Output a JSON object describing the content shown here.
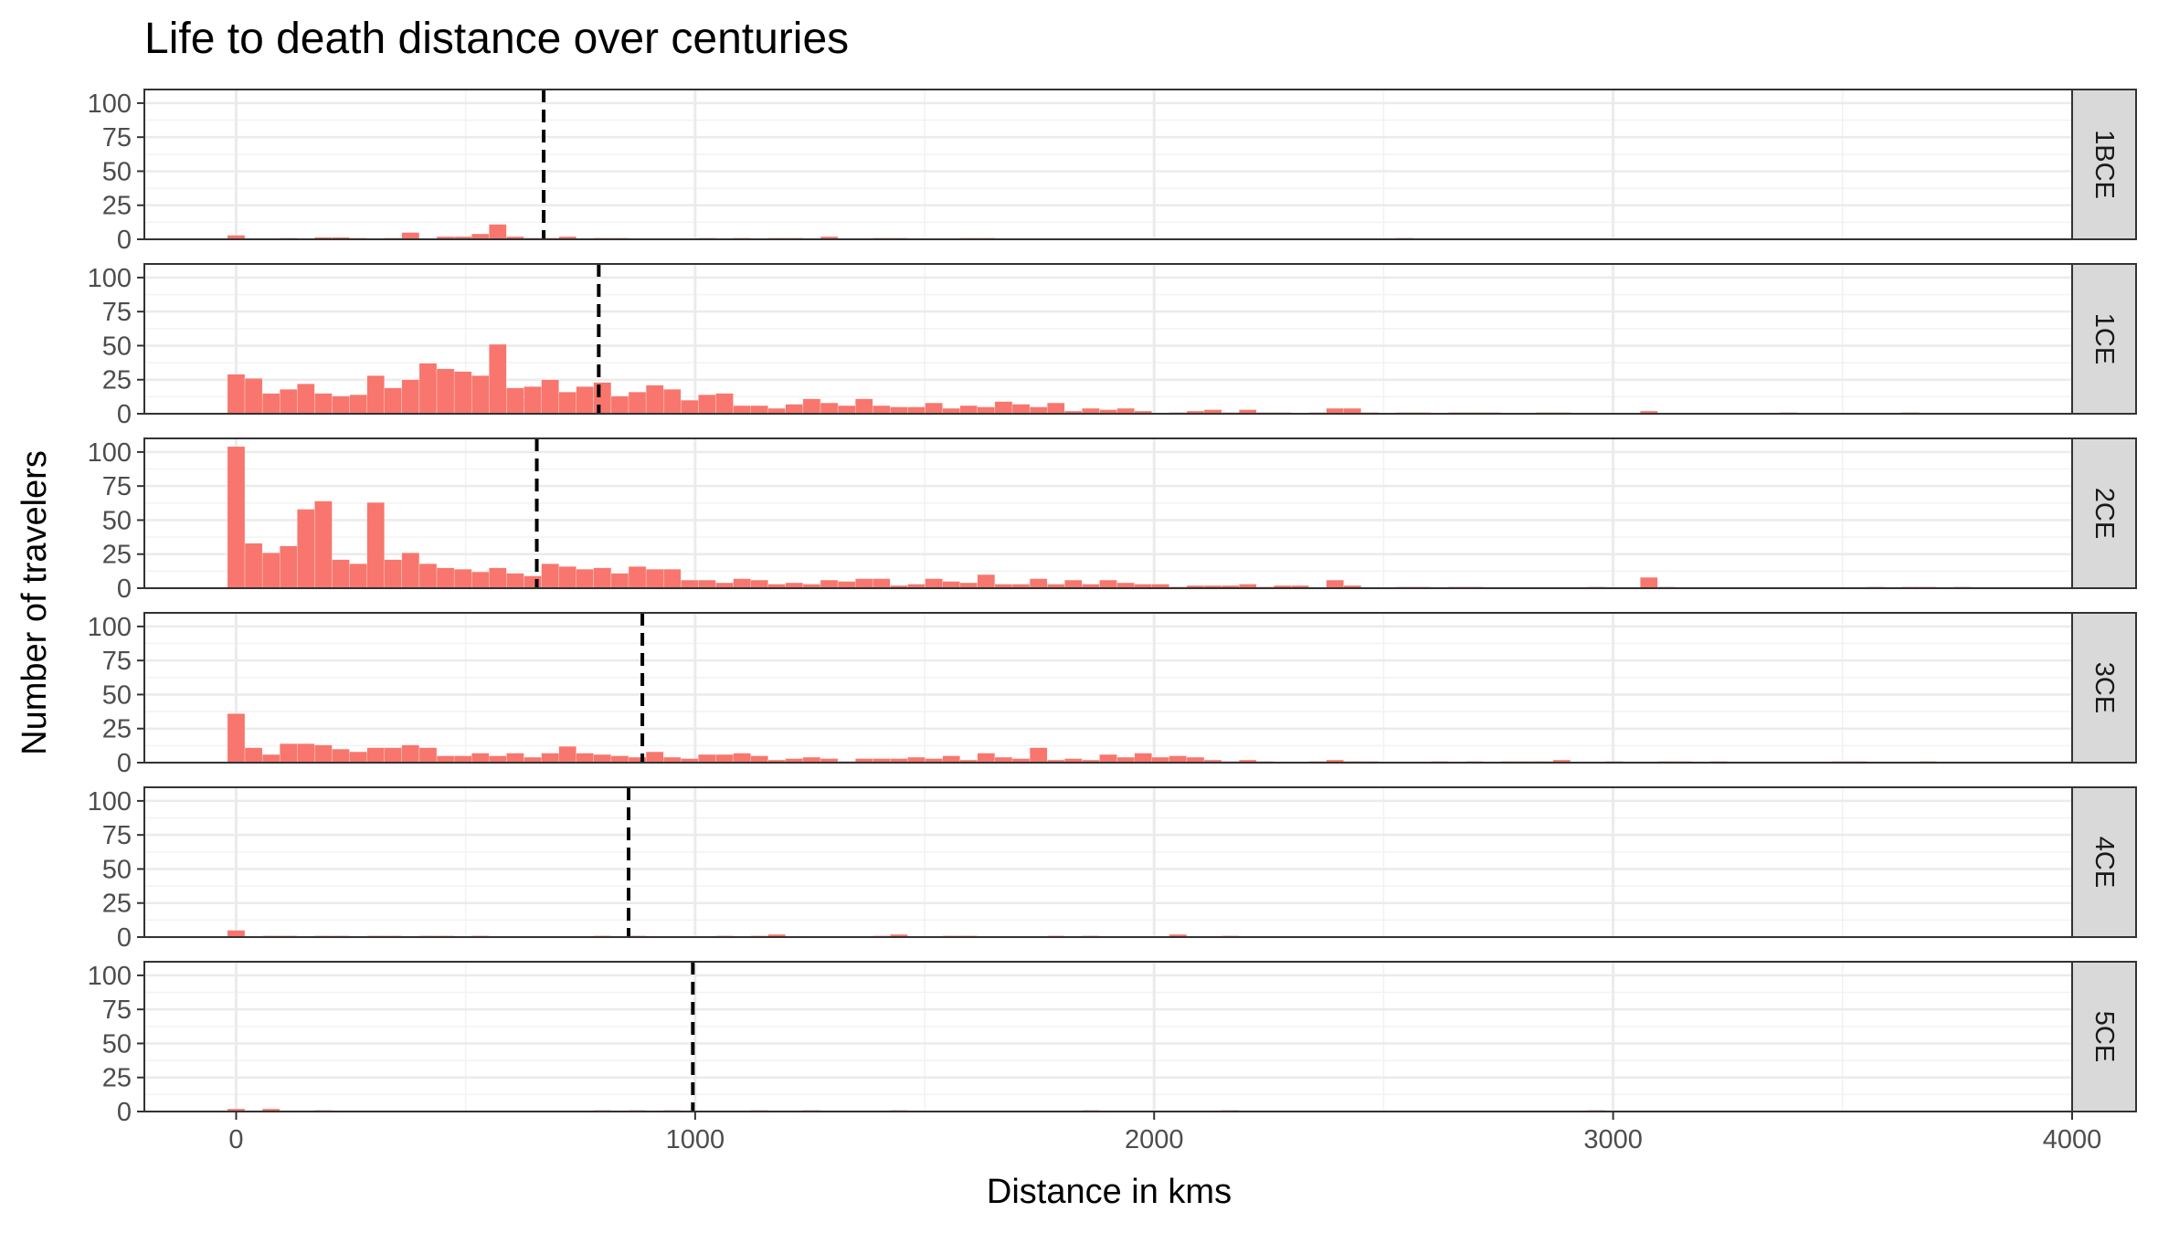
{
  "chart_data": {
    "type": "bar",
    "subtype": "faceted-histogram",
    "title": "Life to death distance over centuries",
    "xlabel": "Distance in kms",
    "ylabel": "Number of travelers",
    "xlim": [
      -200,
      4000
    ],
    "ylim": [
      0,
      110
    ],
    "x_ticks": [
      0,
      1000,
      2000,
      3000,
      4000
    ],
    "y_ticks": [
      0,
      25,
      50,
      75,
      100
    ],
    "bin_width": 38,
    "grid": true,
    "bar_color": "#F8766D",
    "mean_line": {
      "color": "#000000",
      "style": "dashed"
    },
    "facet_strip_position": "right",
    "facets": [
      {
        "label": "1BCE",
        "mean": 670,
        "bins": [
          [
            0,
            3
          ],
          [
            38,
            0.5
          ],
          [
            114,
            1
          ],
          [
            190,
            1.5
          ],
          [
            228,
            1.5
          ],
          [
            266,
            1
          ],
          [
            342,
            1
          ],
          [
            380,
            5
          ],
          [
            456,
            2
          ],
          [
            494,
            2
          ],
          [
            532,
            4
          ],
          [
            570,
            11
          ],
          [
            608,
            2
          ],
          [
            646,
            1
          ],
          [
            684,
            1
          ],
          [
            722,
            2
          ],
          [
            798,
            1
          ],
          [
            836,
            1
          ],
          [
            1026,
            1
          ],
          [
            1102,
            1
          ],
          [
            1178,
            1
          ],
          [
            1216,
            1
          ],
          [
            1292,
            2
          ],
          [
            1406,
            1
          ],
          [
            1444,
            1
          ],
          [
            1596,
            1
          ],
          [
            1634,
            1
          ],
          [
            2546,
            1
          ]
        ]
      },
      {
        "label": "1CE",
        "mean": 790,
        "bins": [
          [
            0,
            29
          ],
          [
            38,
            26
          ],
          [
            76,
            15
          ],
          [
            114,
            18
          ],
          [
            152,
            22
          ],
          [
            190,
            15
          ],
          [
            228,
            13
          ],
          [
            266,
            14
          ],
          [
            304,
            28
          ],
          [
            342,
            19
          ],
          [
            380,
            25
          ],
          [
            418,
            37
          ],
          [
            456,
            33
          ],
          [
            494,
            31
          ],
          [
            532,
            28
          ],
          [
            570,
            51
          ],
          [
            608,
            19
          ],
          [
            646,
            20
          ],
          [
            684,
            25
          ],
          [
            722,
            16
          ],
          [
            760,
            20
          ],
          [
            798,
            23
          ],
          [
            836,
            13
          ],
          [
            874,
            16
          ],
          [
            912,
            21
          ],
          [
            950,
            18
          ],
          [
            988,
            10
          ],
          [
            1026,
            14
          ],
          [
            1064,
            15
          ],
          [
            1102,
            6
          ],
          [
            1140,
            6
          ],
          [
            1178,
            4
          ],
          [
            1216,
            7
          ],
          [
            1254,
            11
          ],
          [
            1292,
            8
          ],
          [
            1330,
            6
          ],
          [
            1368,
            11
          ],
          [
            1406,
            6
          ],
          [
            1444,
            5
          ],
          [
            1482,
            5
          ],
          [
            1520,
            8
          ],
          [
            1558,
            4
          ],
          [
            1596,
            6
          ],
          [
            1634,
            5
          ],
          [
            1672,
            9
          ],
          [
            1710,
            7
          ],
          [
            1748,
            5
          ],
          [
            1786,
            8
          ],
          [
            1824,
            2
          ],
          [
            1862,
            4
          ],
          [
            1900,
            3
          ],
          [
            1938,
            4
          ],
          [
            1976,
            2
          ],
          [
            2052,
            1
          ],
          [
            2090,
            2
          ],
          [
            2128,
            3
          ],
          [
            2166,
            1
          ],
          [
            2204,
            3
          ],
          [
            2242,
            1
          ],
          [
            2280,
            1
          ],
          [
            2356,
            1
          ],
          [
            2394,
            4
          ],
          [
            2432,
            4
          ],
          [
            2470,
            1
          ],
          [
            2546,
            1
          ],
          [
            2584,
            1
          ],
          [
            2660,
            1
          ],
          [
            2698,
            1
          ],
          [
            2736,
            1
          ],
          [
            2850,
            1
          ],
          [
            2888,
            1
          ],
          [
            3078,
            2
          ],
          [
            3382,
            1
          ],
          [
            3648,
            1
          ]
        ]
      },
      {
        "label": "2CE",
        "mean": 655,
        "bins": [
          [
            0,
            104
          ],
          [
            38,
            33
          ],
          [
            76,
            26
          ],
          [
            114,
            31
          ],
          [
            152,
            58
          ],
          [
            190,
            64
          ],
          [
            228,
            21
          ],
          [
            266,
            18
          ],
          [
            304,
            63
          ],
          [
            342,
            21
          ],
          [
            380,
            26
          ],
          [
            418,
            18
          ],
          [
            456,
            15
          ],
          [
            494,
            14
          ],
          [
            532,
            12
          ],
          [
            570,
            15
          ],
          [
            608,
            11
          ],
          [
            646,
            9
          ],
          [
            684,
            18
          ],
          [
            722,
            16
          ],
          [
            760,
            14
          ],
          [
            798,
            15
          ],
          [
            836,
            11
          ],
          [
            874,
            16
          ],
          [
            912,
            14
          ],
          [
            950,
            14
          ],
          [
            988,
            6
          ],
          [
            1026,
            6
          ],
          [
            1064,
            4
          ],
          [
            1102,
            7
          ],
          [
            1140,
            6
          ],
          [
            1178,
            3
          ],
          [
            1216,
            4
          ],
          [
            1254,
            3
          ],
          [
            1292,
            6
          ],
          [
            1330,
            5
          ],
          [
            1368,
            7
          ],
          [
            1406,
            7
          ],
          [
            1444,
            2
          ],
          [
            1482,
            3
          ],
          [
            1520,
            7
          ],
          [
            1558,
            5
          ],
          [
            1596,
            4
          ],
          [
            1634,
            10
          ],
          [
            1672,
            3
          ],
          [
            1710,
            3
          ],
          [
            1748,
            7
          ],
          [
            1786,
            3
          ],
          [
            1824,
            6
          ],
          [
            1862,
            3
          ],
          [
            1900,
            6
          ],
          [
            1938,
            4
          ],
          [
            1976,
            3
          ],
          [
            2014,
            3
          ],
          [
            2052,
            1
          ],
          [
            2090,
            2
          ],
          [
            2128,
            2
          ],
          [
            2166,
            2
          ],
          [
            2204,
            3
          ],
          [
            2242,
            1
          ],
          [
            2280,
            2
          ],
          [
            2318,
            2
          ],
          [
            2394,
            6
          ],
          [
            2432,
            2
          ],
          [
            2546,
            1
          ],
          [
            2584,
            1
          ],
          [
            2660,
            1
          ],
          [
            2698,
            1
          ],
          [
            2964,
            1
          ],
          [
            3078,
            8
          ],
          [
            3116,
            1
          ],
          [
            3572,
            1
          ],
          [
            3648,
            1
          ],
          [
            3686,
            1
          ],
          [
            3762,
            1
          ]
        ]
      },
      {
        "label": "3CE",
        "mean": 885,
        "bins": [
          [
            0,
            36
          ],
          [
            38,
            11
          ],
          [
            76,
            6
          ],
          [
            114,
            14
          ],
          [
            152,
            14
          ],
          [
            190,
            13
          ],
          [
            228,
            10
          ],
          [
            266,
            8
          ],
          [
            304,
            11
          ],
          [
            342,
            11
          ],
          [
            380,
            13
          ],
          [
            418,
            11
          ],
          [
            456,
            5
          ],
          [
            494,
            5
          ],
          [
            532,
            7
          ],
          [
            570,
            5
          ],
          [
            608,
            7
          ],
          [
            646,
            4
          ],
          [
            684,
            7
          ],
          [
            722,
            12
          ],
          [
            760,
            7
          ],
          [
            798,
            6
          ],
          [
            836,
            5
          ],
          [
            874,
            4
          ],
          [
            912,
            8
          ],
          [
            950,
            4
          ],
          [
            988,
            3
          ],
          [
            1026,
            6
          ],
          [
            1064,
            6
          ],
          [
            1102,
            7
          ],
          [
            1140,
            5
          ],
          [
            1178,
            2
          ],
          [
            1216,
            3
          ],
          [
            1254,
            4
          ],
          [
            1292,
            3
          ],
          [
            1330,
            1
          ],
          [
            1368,
            3
          ],
          [
            1406,
            3
          ],
          [
            1444,
            3
          ],
          [
            1482,
            4
          ],
          [
            1520,
            3
          ],
          [
            1558,
            5
          ],
          [
            1596,
            2
          ],
          [
            1634,
            7
          ],
          [
            1672,
            4
          ],
          [
            1710,
            3
          ],
          [
            1748,
            11
          ],
          [
            1786,
            2
          ],
          [
            1824,
            3
          ],
          [
            1862,
            2
          ],
          [
            1900,
            6
          ],
          [
            1938,
            4
          ],
          [
            1976,
            7
          ],
          [
            2014,
            4
          ],
          [
            2052,
            5
          ],
          [
            2090,
            4
          ],
          [
            2128,
            2
          ],
          [
            2166,
            1
          ],
          [
            2204,
            2
          ],
          [
            2242,
            1
          ],
          [
            2356,
            1
          ],
          [
            2394,
            2
          ],
          [
            2432,
            1
          ],
          [
            2470,
            1
          ],
          [
            2622,
            1
          ],
          [
            2698,
            1
          ],
          [
            2774,
            1
          ],
          [
            2812,
            1
          ],
          [
            2850,
            1
          ],
          [
            2888,
            2
          ],
          [
            3002,
            1
          ],
          [
            3116,
            1
          ],
          [
            3154,
            1
          ],
          [
            3230,
            1
          ],
          [
            3496,
            1
          ],
          [
            3534,
            1
          ],
          [
            3686,
            1
          ]
        ]
      },
      {
        "label": "4CE",
        "mean": 855,
        "bins": [
          [
            0,
            5
          ],
          [
            76,
            1
          ],
          [
            114,
            1
          ],
          [
            190,
            1
          ],
          [
            228,
            1
          ],
          [
            304,
            1
          ],
          [
            342,
            1
          ],
          [
            418,
            1
          ],
          [
            456,
            1
          ],
          [
            532,
            1
          ],
          [
            798,
            1
          ],
          [
            874,
            1
          ],
          [
            1064,
            1
          ],
          [
            1140,
            1
          ],
          [
            1178,
            2
          ],
          [
            1406,
            1
          ],
          [
            1444,
            2
          ],
          [
            1558,
            1
          ],
          [
            1596,
            1
          ],
          [
            1786,
            1
          ],
          [
            1862,
            1
          ],
          [
            2052,
            2
          ],
          [
            2166,
            1
          ]
        ]
      },
      {
        "label": "5CE",
        "mean": 995,
        "bins": [
          [
            0,
            2
          ],
          [
            76,
            2
          ],
          [
            190,
            1
          ],
          [
            798,
            1
          ],
          [
            874,
            1
          ],
          [
            950,
            1
          ],
          [
            1140,
            1
          ],
          [
            1254,
            1
          ],
          [
            1444,
            1
          ],
          [
            1862,
            1
          ],
          [
            2166,
            1
          ],
          [
            2964,
            1
          ]
        ]
      }
    ]
  }
}
